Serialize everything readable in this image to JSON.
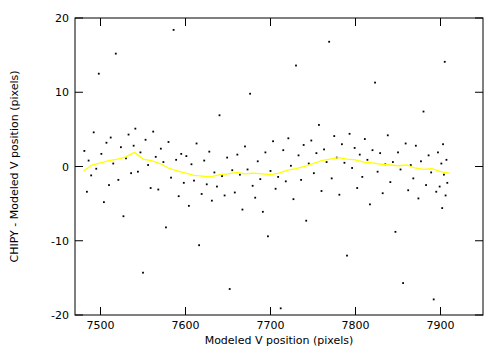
{
  "chart_data": {
    "type": "scatter",
    "x_label": "Modeled V position (pixels)",
    "y_label": "CHIPY - Modeled V position (pixels)",
    "xlim": [
      7470,
      7950
    ],
    "xticks": [
      7500,
      7600,
      7700,
      7800,
      7900
    ],
    "ylim": [
      -20,
      20
    ],
    "yticks": [
      -20,
      -10,
      0,
      10,
      20
    ],
    "grid": false,
    "series": [
      {
        "type": "scatter",
        "color": "#000000",
        "marker": "dot",
        "x": [
          7481,
          7484,
          7486,
          7489,
          7492,
          7495,
          7498,
          7501,
          7504,
          7507,
          7510,
          7512,
          7515,
          7518,
          7521,
          7524,
          7527,
          7530,
          7533,
          7536,
          7539,
          7541,
          7544,
          7547,
          7550,
          7553,
          7556,
          7559,
          7562,
          7565,
          7568,
          7571,
          7574,
          7577,
          7580,
          7583,
          7586,
          7589,
          7592,
          7595,
          7598,
          7601,
          7604,
          7607,
          7610,
          7613,
          7616,
          7619,
          7622,
          7625,
          7628,
          7631,
          7634,
          7637,
          7640,
          7643,
          7646,
          7649,
          7652,
          7655,
          7658,
          7661,
          7664,
          7667,
          7670,
          7673,
          7676,
          7679,
          7682,
          7685,
          7688,
          7691,
          7694,
          7697,
          7700,
          7703,
          7706,
          7709,
          7712,
          7715,
          7718,
          7721,
          7724,
          7727,
          7730,
          7733,
          7736,
          7739,
          7742,
          7745,
          7748,
          7751,
          7754,
          7757,
          7760,
          7763,
          7766,
          7769,
          7772,
          7775,
          7778,
          7781,
          7784,
          7787,
          7790,
          7793,
          7796,
          7799,
          7802,
          7805,
          7808,
          7811,
          7814,
          7817,
          7820,
          7823,
          7826,
          7829,
          7832,
          7835,
          7838,
          7841,
          7844,
          7847,
          7850,
          7853,
          7856,
          7859,
          7862,
          7865,
          7868,
          7871,
          7874,
          7877,
          7880,
          7883,
          7886,
          7889,
          7892,
          7895,
          7897,
          7899,
          7901,
          7902,
          7903,
          7904,
          7905,
          7906,
          7907,
          7908
        ],
        "values": [
          2.1,
          -3.4,
          0.8,
          -1.2,
          4.6,
          -0.3,
          12.5,
          1.7,
          -4.8,
          3.2,
          -2.5,
          3.9,
          0.4,
          15.2,
          -1.8,
          2.6,
          -6.7,
          1.1,
          4.3,
          -0.9,
          2.8,
          5.1,
          -0.7,
          1.9,
          -14.3,
          3.6,
          0.2,
          -2.9,
          4.7,
          1.3,
          -3.1,
          2.4,
          0.6,
          -8.2,
          3.3,
          -1.5,
          18.4,
          0.9,
          -4.0,
          1.7,
          -2.2,
          1.4,
          -5.3,
          0.3,
          -1.9,
          3.1,
          -10.6,
          -3.7,
          0.8,
          -2.4,
          2.0,
          -4.6,
          -0.8,
          -2.7,
          6.9,
          -1.3,
          -3.9,
          1.2,
          -16.5,
          -0.5,
          -3.5,
          1.6,
          -1.1,
          -5.8,
          2.7,
          -0.4,
          9.8,
          -2.6,
          -4.2,
          0.7,
          -1.7,
          -6.1,
          1.9,
          -9.4,
          -0.6,
          3.4,
          -3.0,
          -1.4,
          -19.1,
          2.2,
          -2.0,
          3.8,
          0.1,
          -4.4,
          13.6,
          1.5,
          -1.8,
          2.9,
          -7.3,
          0.4,
          3.5,
          -0.9,
          1.8,
          5.6,
          -3.3,
          2.3,
          0.6,
          16.8,
          -1.6,
          4.1,
          1.2,
          -3.8,
          3.0,
          0.5,
          -12.0,
          4.4,
          -0.2,
          2.5,
          -2.9,
          1.6,
          -1.4,
          3.7,
          0.9,
          -5.1,
          2.2,
          11.3,
          -0.7,
          1.8,
          -3.6,
          0.3,
          4.2,
          -2.1,
          0.6,
          -8.8,
          1.9,
          -0.4,
          -15.7,
          3.1,
          -3.2,
          0.2,
          -1.6,
          2.8,
          -4.3,
          0.7,
          7.4,
          -2.5,
          1.5,
          -0.8,
          -17.9,
          -3.4,
          1.9,
          -2.7,
          0.4,
          -5.6,
          3.0,
          -1.1,
          14.1,
          -3.9,
          0.9,
          -2.2
        ]
      },
      {
        "type": "line",
        "color": "#ffff00",
        "line_style": "solid",
        "x": [
          7480,
          7490,
          7500,
          7510,
          7520,
          7530,
          7540,
          7550,
          7560,
          7570,
          7580,
          7590,
          7600,
          7610,
          7620,
          7630,
          7640,
          7650,
          7660,
          7670,
          7680,
          7690,
          7700,
          7710,
          7720,
          7730,
          7740,
          7750,
          7760,
          7770,
          7780,
          7790,
          7800,
          7810,
          7820,
          7830,
          7840,
          7850,
          7860,
          7870,
          7880,
          7890,
          7900,
          7910
        ],
        "values": [
          -0.6,
          0.2,
          0.5,
          0.8,
          1.0,
          1.3,
          1.9,
          1.0,
          0.8,
          0.4,
          -0.2,
          -0.6,
          -0.9,
          -1.2,
          -1.3,
          -1.4,
          -1.1,
          -1.0,
          -0.8,
          -1.0,
          -0.9,
          -1.0,
          -1.1,
          -0.9,
          -0.5,
          -0.3,
          0.0,
          0.4,
          0.8,
          1.0,
          1.2,
          1.0,
          0.9,
          0.6,
          0.5,
          0.3,
          0.2,
          0.1,
          0.2,
          -0.2,
          -0.4,
          -0.3,
          -0.7,
          -0.9
        ]
      }
    ]
  }
}
